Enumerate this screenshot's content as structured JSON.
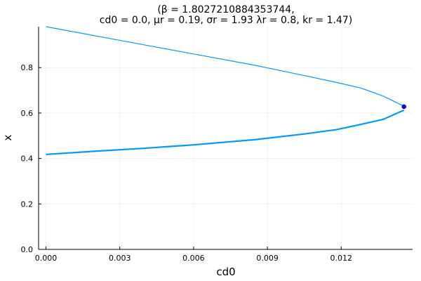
{
  "chart_data": {
    "type": "line",
    "title_lines": [
      "(β = 1.8027210884353744,",
      "cd0 = 0.0, μr = 0.19, σr = 1.93 λr = 0.8, kr = 1.47)"
    ],
    "xlabel": "cd0",
    "ylabel": "x",
    "xlim": [
      -0.0003,
      0.0149
    ],
    "ylim": [
      0.0,
      0.98
    ],
    "xticks": [
      0.0,
      0.003,
      0.006,
      0.009,
      0.012
    ],
    "xtick_labels": [
      "0.000",
      "0.003",
      "0.006",
      "0.009",
      "0.012"
    ],
    "yticks": [
      0.0,
      0.2,
      0.4,
      0.6,
      0.8
    ],
    "ytick_labels": [
      "0.0",
      "0.2",
      "0.4",
      "0.6",
      "0.8"
    ],
    "grid": true,
    "legend": "none",
    "series": [
      {
        "role": "upper-branch",
        "color": "#009af9",
        "style": "thin",
        "x": [
          0.0,
          0.003,
          0.006,
          0.0085,
          0.0105,
          0.0118,
          0.0128,
          0.0137,
          0.01455
        ],
        "y": [
          0.98,
          0.92,
          0.86,
          0.81,
          0.765,
          0.735,
          0.71,
          0.675,
          0.63
        ]
      },
      {
        "role": "lower-branch",
        "color": "#009af9",
        "style": "thick",
        "x": [
          0.0,
          0.002,
          0.004,
          0.006,
          0.0085,
          0.0105,
          0.0118,
          0.0128,
          0.0137,
          0.01455
        ],
        "y": [
          0.418,
          0.432,
          0.445,
          0.46,
          0.483,
          0.508,
          0.527,
          0.55,
          0.572,
          0.613
        ]
      },
      {
        "role": "bifurcation-point",
        "color": "#0000ff",
        "type": "scatter",
        "x": [
          0.01455
        ],
        "y": [
          0.628
        ]
      }
    ]
  }
}
